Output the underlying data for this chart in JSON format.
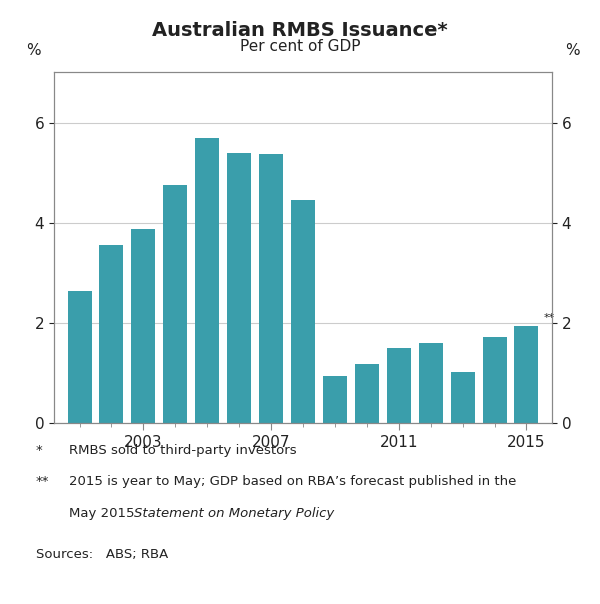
{
  "title": "Australian RMBS Issuance*",
  "subtitle": "Per cent of GDP",
  "bar_color": "#3a9eab",
  "years": [
    2001,
    2002,
    2003,
    2004,
    2005,
    2006,
    2007,
    2008,
    2009,
    2010,
    2011,
    2012,
    2013,
    2014,
    2015
  ],
  "values": [
    2.63,
    3.55,
    3.88,
    4.75,
    5.7,
    5.4,
    5.38,
    4.45,
    0.93,
    1.18,
    1.5,
    1.6,
    1.02,
    1.72,
    1.93
  ],
  "ylim": [
    0,
    7
  ],
  "yticks": [
    0,
    2,
    4,
    6
  ],
  "xtick_major_years": [
    2003,
    2007,
    2011,
    2015
  ],
  "ylabel_left": "%",
  "ylabel_right": "%",
  "double_star_note": "**",
  "footnote1_star": "*",
  "footnote1_text": "RMBS sold to third-party investors",
  "footnote2_star": "**",
  "footnote2_text_normal1": "2015 is year to May; GDP based on RBA’s forecast published in the",
  "footnote2_text_normal2": "May 2015 ",
  "footnote2_italic": "Statement on Monetary Policy",
  "sources_text": "Sources:   ABS; RBA",
  "background_color": "#ffffff",
  "grid_color": "#cccccc",
  "spine_color": "#888888",
  "text_color": "#222222"
}
